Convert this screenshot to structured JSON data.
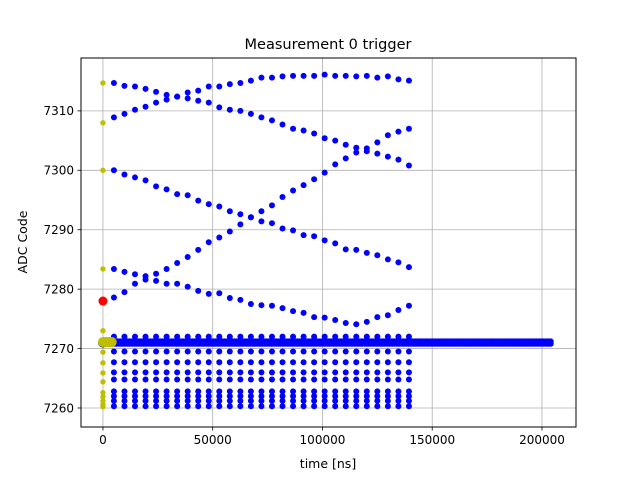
{
  "chart_data": {
    "type": "scatter",
    "title": "Measurement 0 trigger",
    "xlabel": "time [ns]",
    "ylabel": "ADC Code",
    "xlim": [
      -10000,
      215500
    ],
    "ylim": [
      7256.8,
      7318.9
    ],
    "grid": true,
    "xticks": [
      0,
      50000,
      100000,
      150000,
      200000
    ],
    "xtick_labels": [
      "0",
      "50000",
      "100000",
      "150000",
      "200000"
    ],
    "yticks": [
      7260,
      7270,
      7280,
      7290,
      7300,
      7310
    ],
    "ytick_labels": [
      "7260",
      "7270",
      "7280",
      "7290",
      "7300",
      "7310"
    ],
    "colors": {
      "blue": "#0000ff",
      "yellow": "#bfbf00",
      "red": "#ff0000",
      "grid": "#b0b0b0"
    },
    "curve_x": [
      5000,
      9800,
      14600,
      19400,
      24200,
      29000,
      33800,
      38600,
      43400,
      48200,
      53000,
      57800,
      62600,
      67400,
      72200,
      77000,
      81800,
      86600,
      91400,
      96200,
      101000,
      105800,
      110600,
      115400,
      120200,
      125000,
      129800,
      134600,
      139400
    ],
    "blue_curves": [
      [
        7314.7,
        7314.2,
        7314.1,
        7313.7,
        7313.2,
        7312.7,
        7312.4,
        7313.1,
        7313.4,
        7314.1,
        7314.1,
        7314.5,
        7314.7,
        7315.1,
        7315.6,
        7315.6,
        7315.8,
        7315.9,
        7315.9,
        7315.9,
        7316.1,
        7315.9,
        7315.9,
        7315.8,
        7315.9,
        7315.6,
        7315.8,
        7315.3,
        7315.1
      ],
      [
        7308.9,
        7309.5,
        7310.2,
        7310.7,
        7311.4,
        7311.9,
        7312.4,
        7312.1,
        7311.7,
        7311.4,
        7310.6,
        7310.2,
        7310.0,
        7309.5,
        7308.9,
        7308.4,
        7307.7,
        7307.0,
        7306.7,
        7306.2,
        7305.4,
        7305.0,
        7304.3,
        7303.8,
        7303.2,
        7302.8,
        7302.3,
        7301.8,
        7300.8
      ],
      [
        7300.0,
        7299.3,
        7298.8,
        7298.3,
        7297.3,
        7296.8,
        7296.0,
        7295.8,
        7294.9,
        7294.3,
        7293.9,
        7293.1,
        7292.6,
        7292.1,
        7291.4,
        7291.1,
        7290.2,
        7289.9,
        7289.1,
        7288.9,
        7288.2,
        7287.7,
        7286.7,
        7286.6,
        7286.1,
        7285.7,
        7285.0,
        7284.5,
        7283.7
      ],
      [
        7283.4,
        7282.9,
        7282.5,
        7282.2,
        7282.6,
        7283.4,
        7284.4,
        7285.4,
        7286.6,
        7287.9,
        7288.7,
        7289.7,
        7290.9,
        7292.1,
        7293.1,
        7294.1,
        7295.5,
        7296.6,
        7297.5,
        7298.5,
        7299.6,
        7301.0,
        7302.0,
        7303.0,
        7303.7,
        7304.7,
        7305.9,
        7306.5,
        7307.0
      ],
      [
        7278.6,
        7279.5,
        7280.9,
        7281.6,
        7281.4,
        7280.9,
        7280.9,
        7280.4,
        7279.7,
        7279.2,
        7279.3,
        7278.5,
        7278.2,
        7277.5,
        7277.3,
        7277.2,
        7276.8,
        7276.3,
        7276.0,
        7275.3,
        7275.2,
        7274.8,
        7274.3,
        7274.1,
        7274.5,
        7275.3,
        7275.6,
        7276.5,
        7277.2
      ]
    ],
    "blue_levels": [
      7272.0,
      7269.5,
      7267.7,
      7266.0,
      7264.8,
      7262.8,
      7262.0,
      7261.2,
      7260.3
    ],
    "blue_band": {
      "x_start": 0,
      "x_end": 204000,
      "step": 800,
      "y": [
        7270.8,
        7271.2
      ]
    },
    "yellow_points": {
      "x": [
        0,
        0,
        0,
        0,
        0,
        0,
        0,
        0,
        0,
        0,
        0,
        0,
        0,
        0
      ],
      "y": [
        7314.7,
        7308.0,
        7300.0,
        7283.4,
        7273.0,
        7269.4,
        7267.6,
        7265.9,
        7264.4,
        7262.6,
        7261.9,
        7261.2,
        7260.6,
        7260.2
      ]
    },
    "yellow_big": {
      "x": [
        1000,
        2000,
        3000,
        4000
      ],
      "y": [
        7271.1,
        7271.1,
        7271.1,
        7271.1
      ]
    },
    "red_point": {
      "x": 0,
      "y": 7278.0
    }
  }
}
